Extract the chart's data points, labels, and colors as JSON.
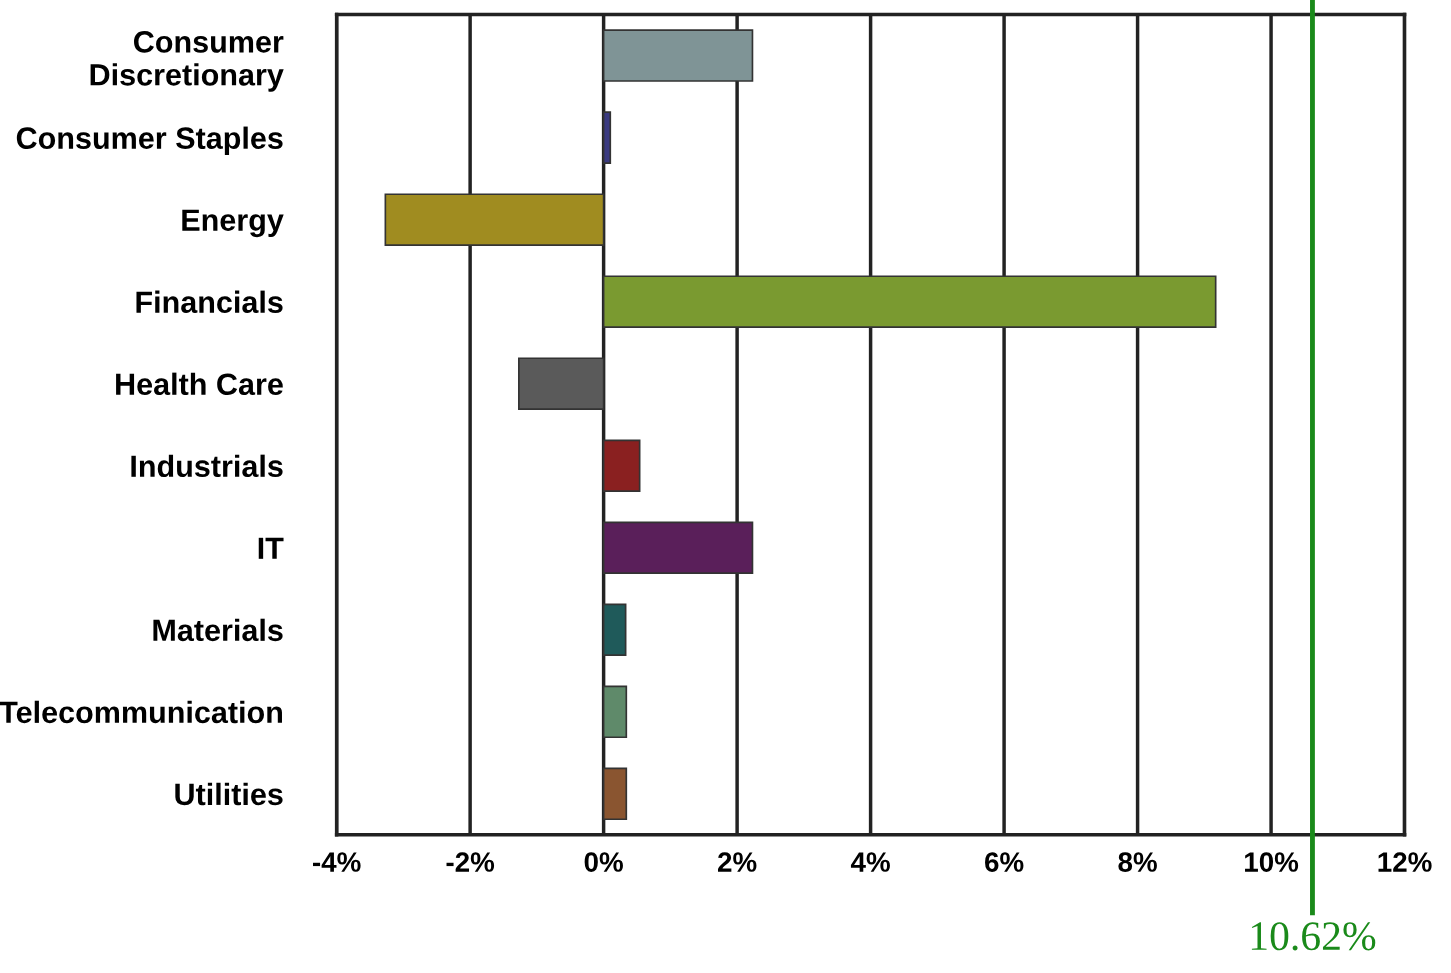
{
  "chart_data": {
    "type": "bar",
    "orientation": "horizontal",
    "categories": [
      "Consumer\nDiscretionary",
      "Consumer Staples",
      "Energy",
      "Financials",
      "Health Care",
      "Industrials",
      "IT",
      "Materials",
      "Telecommunication",
      "Utilities"
    ],
    "values": [
      2.23,
      0.1,
      -3.27,
      9.17,
      -1.27,
      0.54,
      2.23,
      0.33,
      0.34,
      0.34
    ],
    "colors": [
      "#7f9496",
      "#3a3a80",
      "#a08c20",
      "#7a9a30",
      "#5a5a5a",
      "#8a2020",
      "#5a1f5a",
      "#1f5a5a",
      "#5f8a6a",
      "#8a5530"
    ],
    "xlim": [
      -4,
      12
    ],
    "xticks": [
      {
        "value": -4,
        "label": "-4%"
      },
      {
        "value": -2,
        "label": "-2%"
      },
      {
        "value": 0,
        "label": "0%"
      },
      {
        "value": 2,
        "label": "2%"
      },
      {
        "value": 4,
        "label": "4%"
      },
      {
        "value": 6,
        "label": "6%"
      },
      {
        "value": 8,
        "label": "8%"
      },
      {
        "value": 10,
        "label": "10%"
      },
      {
        "value": 12,
        "label": "12%"
      }
    ],
    "grid": "x",
    "ref_lines": [
      {
        "axis": "x",
        "value": 10.62,
        "label": "10.62%",
        "color": "#1a8a1a"
      }
    ]
  }
}
